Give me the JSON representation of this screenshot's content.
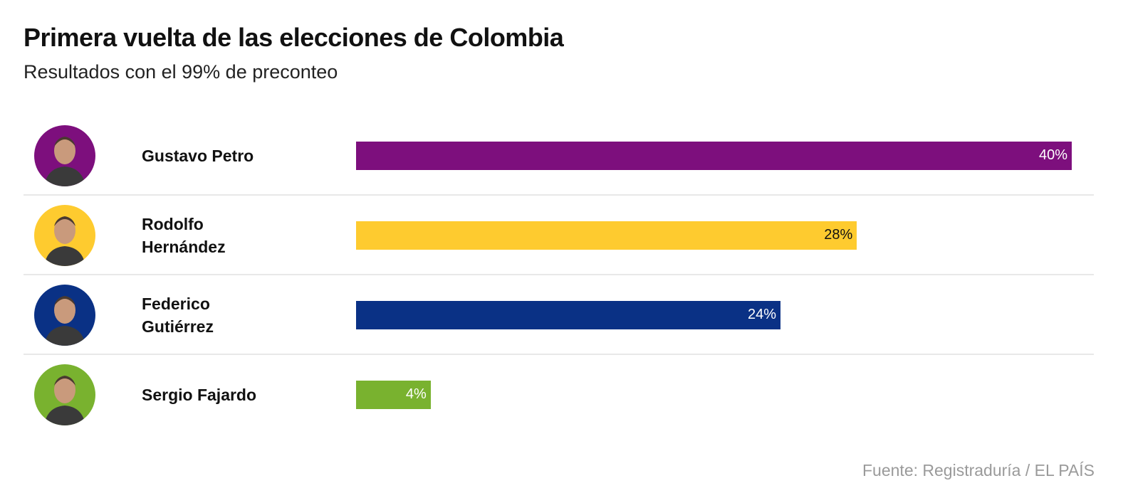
{
  "chart_data": {
    "type": "bar",
    "orientation": "horizontal",
    "title": "Primera vuelta de las elecciones de Colombia",
    "subtitle": "Resultados con el 99% de preconteo",
    "source": "Fuente: Registraduría / EL PAÍS",
    "grid": false,
    "categories": [
      "Gustavo Petro",
      "Rodolfo Hernández",
      "Federico Gutiérrez",
      "Sergio Fajardo"
    ],
    "name_lines": [
      [
        "Gustavo Petro"
      ],
      [
        "Rodolfo",
        "Hernández"
      ],
      [
        "Federico",
        "Gutiérrez"
      ],
      [
        "Sergio Fajardo"
      ]
    ],
    "values": [
      40.3,
      28.2,
      23.9,
      4.2
    ],
    "labels": [
      "40%",
      "28%",
      "24%",
      "4%"
    ],
    "colors": [
      "#7d0f7d",
      "#fecb2f",
      "#0a3185",
      "#79b22f"
    ],
    "label_colors": [
      "#ffffff",
      "#111111",
      "#ffffff",
      "#ffffff"
    ]
  }
}
